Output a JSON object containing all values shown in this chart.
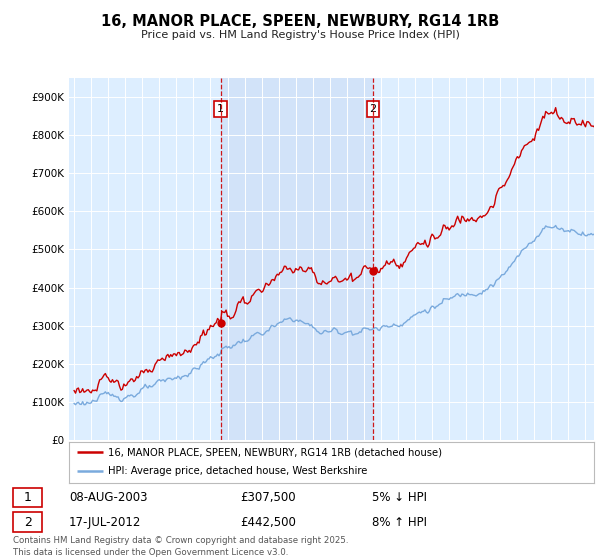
{
  "title": "16, MANOR PLACE, SPEEN, NEWBURY, RG14 1RB",
  "subtitle": "Price paid vs. HM Land Registry's House Price Index (HPI)",
  "legend_label_red": "16, MANOR PLACE, SPEEN, NEWBURY, RG14 1RB (detached house)",
  "legend_label_blue": "HPI: Average price, detached house, West Berkshire",
  "transaction1_date": "08-AUG-2003",
  "transaction1_price": "£307,500",
  "transaction1_note": "5% ↓ HPI",
  "transaction2_date": "17-JUL-2012",
  "transaction2_price": "£442,500",
  "transaction2_note": "8% ↑ HPI",
  "footer": "Contains HM Land Registry data © Crown copyright and database right 2025.\nThis data is licensed under the Open Government Licence v3.0.",
  "color_red": "#cc0000",
  "color_blue": "#7aaadd",
  "color_bg": "#ddeeff",
  "color_bg_between": "#e8f0fa",
  "color_grid": "#ffffff",
  "fig_bg": "#ffffff",
  "ylim_min": 0,
  "ylim_max": 950000,
  "transaction1_year": 2003.604,
  "transaction2_year": 2012.541,
  "transaction1_price_val": 307500,
  "transaction2_price_val": 442500
}
